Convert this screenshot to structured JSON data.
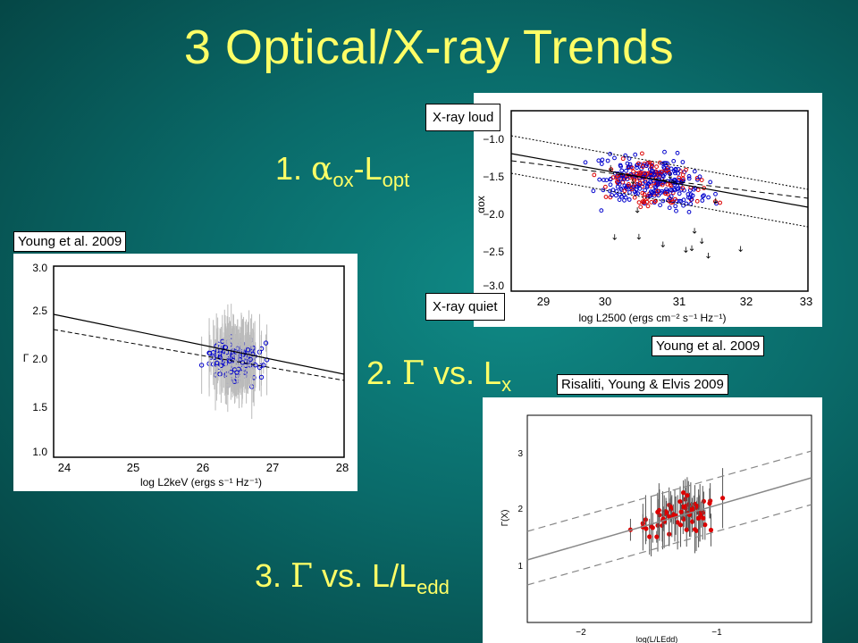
{
  "title": "3 Optical/X-ray Trends",
  "trends": {
    "t1": {
      "num": "1.",
      "alpha": "α",
      "ox": "ox",
      "dash": "-L",
      "opt": "opt"
    },
    "t2": {
      "num": "2.",
      "gamma": "Γ",
      "vs": "vs. L",
      "x": "x"
    },
    "t3": {
      "num": "3.",
      "gamma": "Γ",
      "vs": "vs. L/L",
      "edd": "edd"
    }
  },
  "captions": {
    "young_left": "Young et al. 2009",
    "young_right": "Young et al. 2009",
    "risaliti": "Risaliti, Young & Elvis 2009",
    "xray_loud": "X-ray loud",
    "xray_quiet": "X-ray quiet"
  },
  "plots": {
    "alpha_ox": {
      "ylabel": "αox",
      "xlabel": "log L2500 (ergs cm⁻² s⁻¹ Hz⁻¹)",
      "xticks": [
        "29",
        "30",
        "31",
        "32",
        "33"
      ],
      "yticks": [
        "−1.0",
        "−1.5",
        "−2.0",
        "−2.5",
        "−3.0"
      ]
    },
    "gamma_lx": {
      "ylabel": "Γ",
      "xlabel": "log L2keV (ergs s⁻¹ Hz⁻¹)",
      "xticks": [
        "24",
        "25",
        "26",
        "27",
        "28"
      ],
      "yticks": [
        "3.0",
        "2.5",
        "2.0",
        "1.5",
        "1.0"
      ]
    },
    "gamma_ledd": {
      "ylabel": "Γ(X)",
      "xlabel": "log(L/LEdd)",
      "xticks": [
        "−2",
        "−1"
      ],
      "yticks": [
        "3",
        "2",
        "1"
      ]
    }
  },
  "colors": {
    "title": "#ffff66",
    "blue_points": "#0000cc",
    "red_points": "#dd0000"
  }
}
